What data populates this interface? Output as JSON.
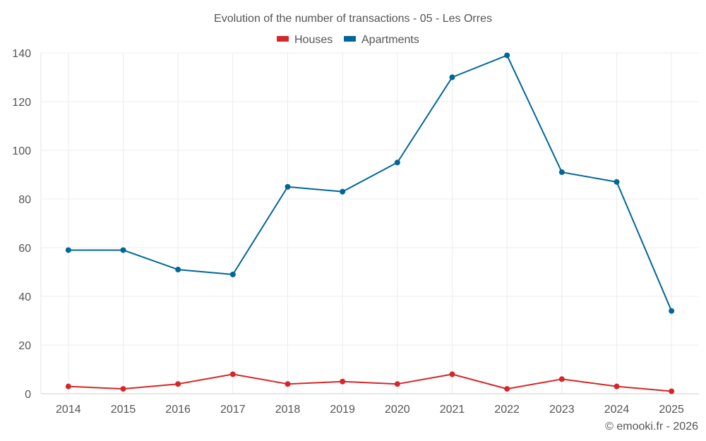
{
  "chart_data": {
    "type": "line",
    "title": "Evolution of the number of transactions - 05 - Les Orres",
    "xlabel": "",
    "ylabel": "",
    "categories": [
      "2014",
      "2015",
      "2016",
      "2017",
      "2018",
      "2019",
      "2020",
      "2021",
      "2022",
      "2023",
      "2024",
      "2025"
    ],
    "ylim": [
      0,
      140
    ],
    "yticks": [
      0,
      20,
      40,
      60,
      80,
      100,
      120,
      140
    ],
    "grid": true,
    "legend_position": "top-center",
    "series": [
      {
        "name": "Houses",
        "color": "#d62728",
        "values": [
          3,
          2,
          4,
          8,
          4,
          5,
          4,
          8,
          2,
          6,
          3,
          1
        ]
      },
      {
        "name": "Apartments",
        "color": "#006699",
        "values": [
          59,
          59,
          51,
          49,
          85,
          83,
          95,
          130,
          139,
          91,
          87,
          34
        ]
      }
    ]
  },
  "credit": "© emooki.fr - 2026"
}
